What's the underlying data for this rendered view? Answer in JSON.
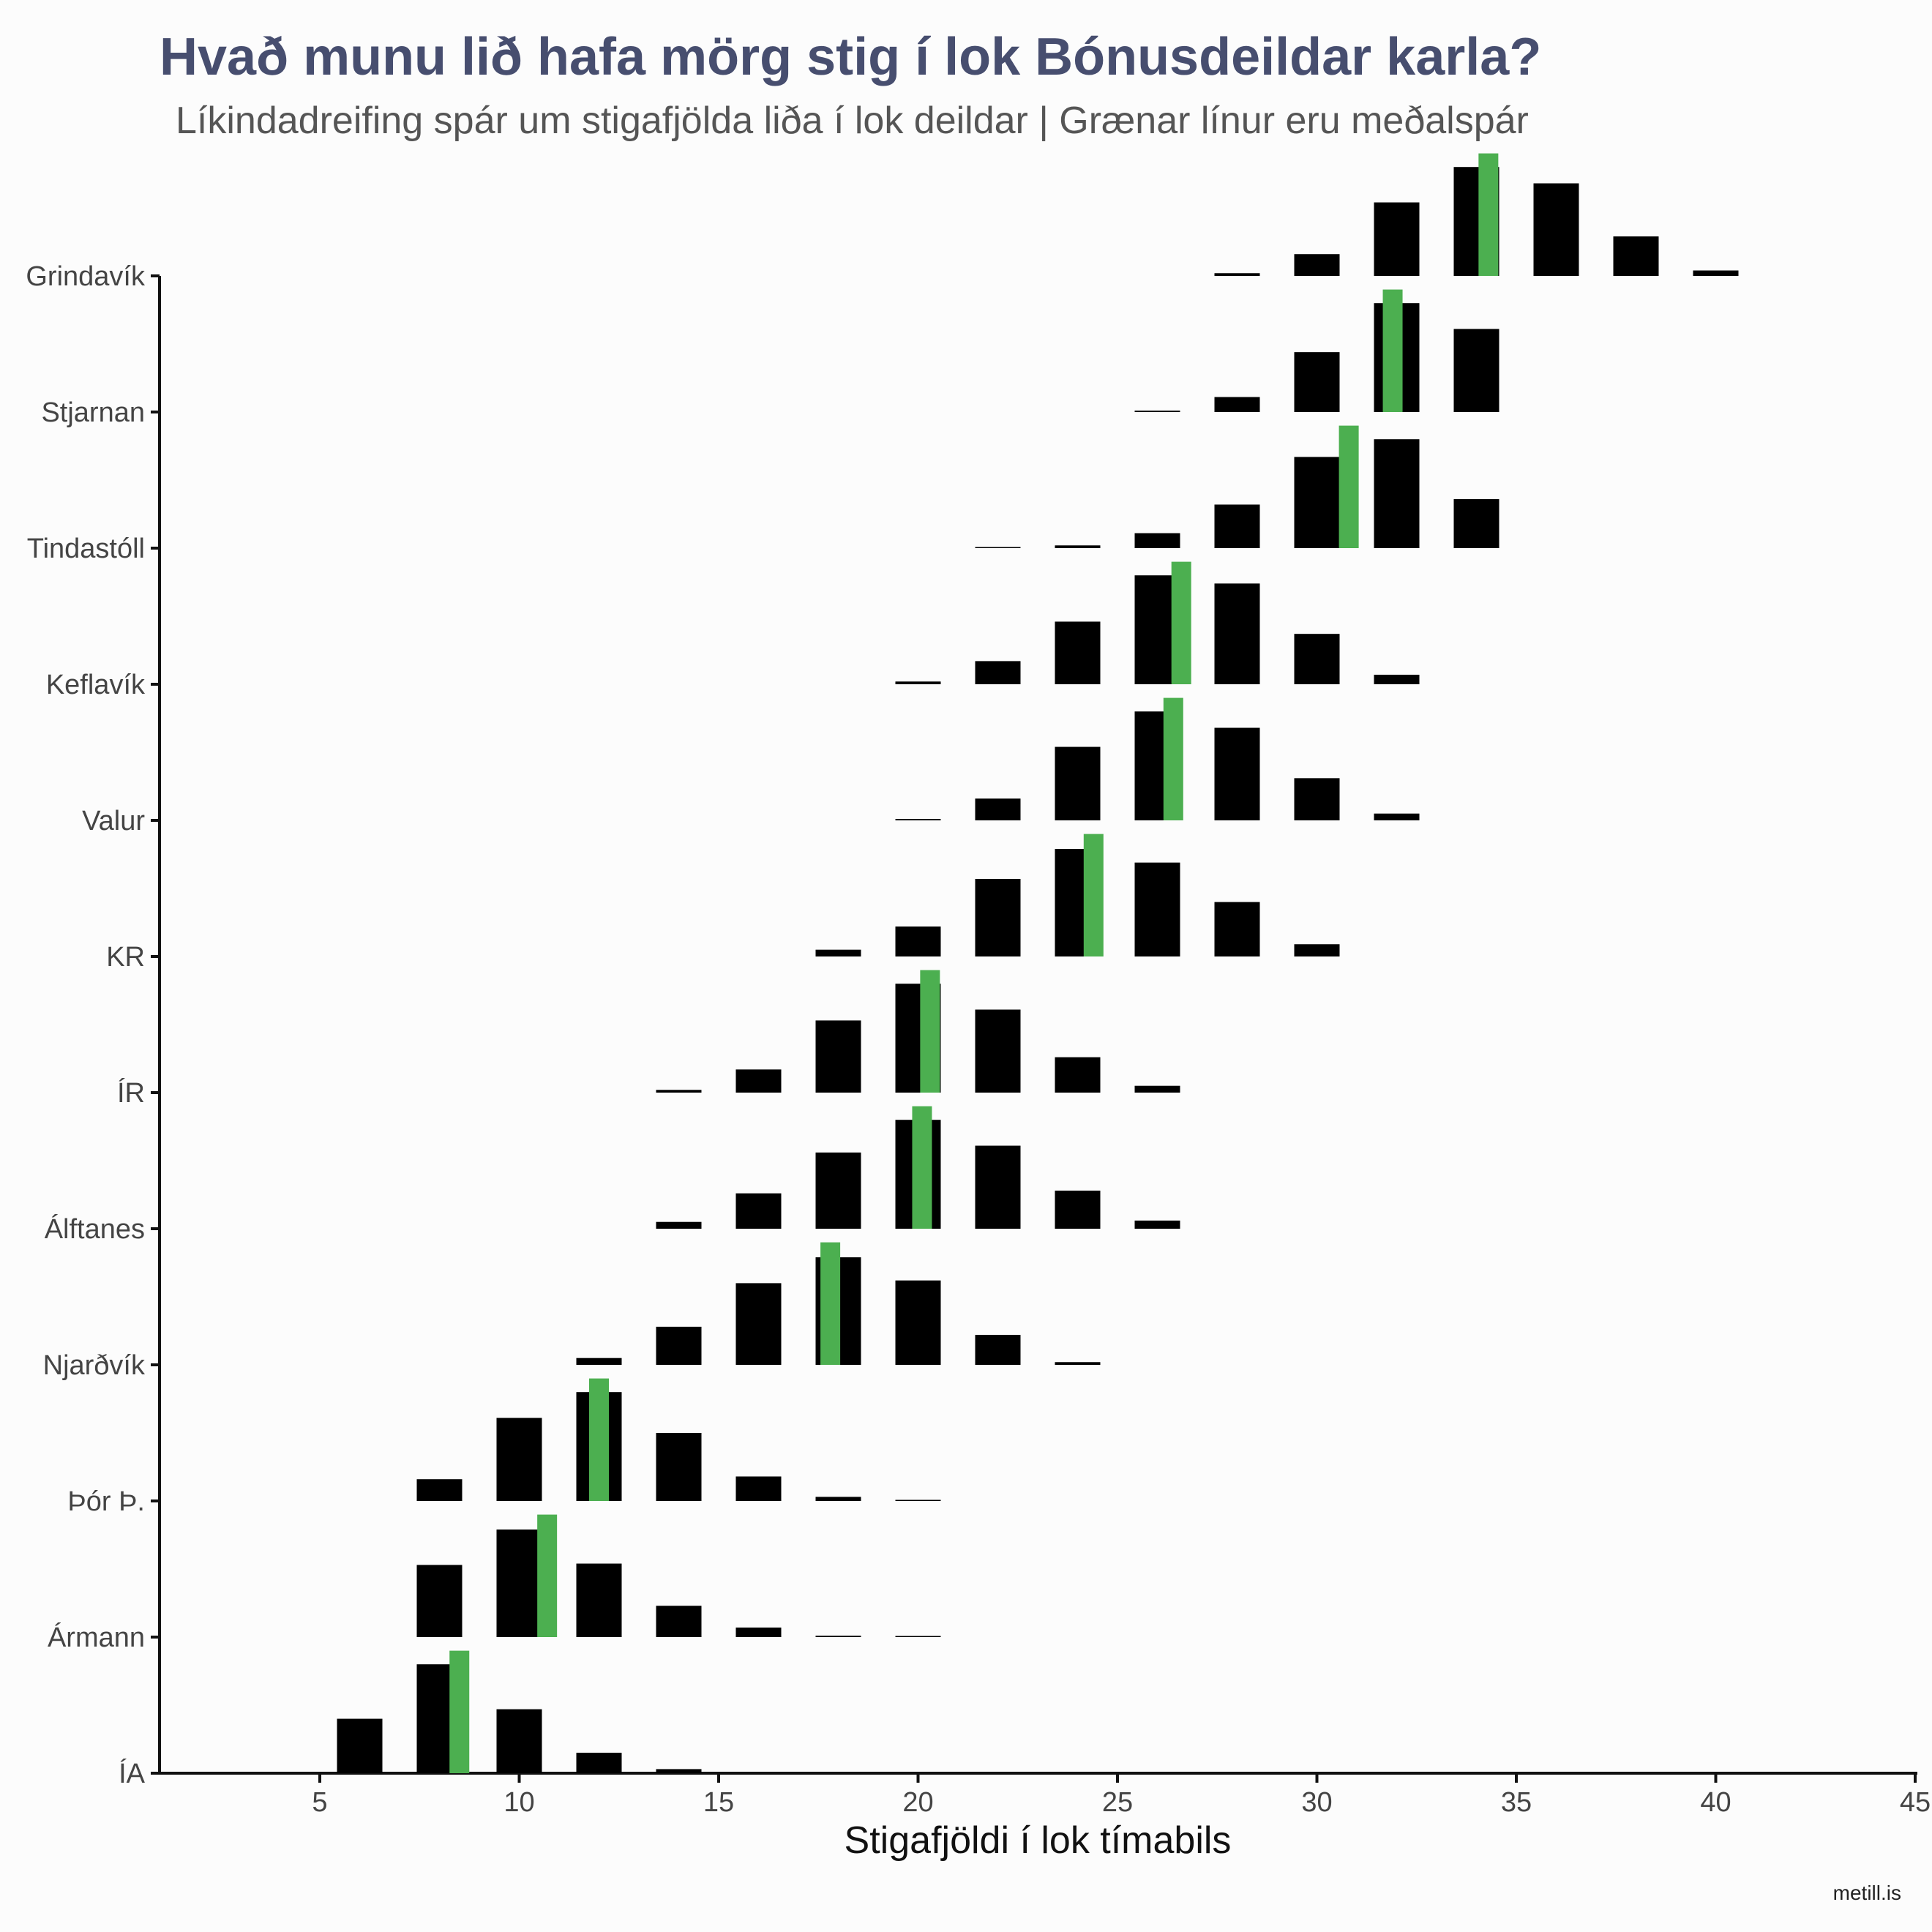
{
  "title": "Hvað munu lið hafa mörg stig í lok Bónusdeildar karla?",
  "subtitle": "Líkindadreifing spár um stigafjölda liða í lok deildar | Grænar línur eru meðalspár",
  "caption": "metill.is",
  "colors": {
    "bars": "#000000",
    "mean_line": "#4caf50",
    "title": "#474e6f",
    "background": "#fcfcfc"
  },
  "chart_data": {
    "type": "bar",
    "title": "Hvað munu lið hafa mörg stig í lok Bónusdeildar karla?",
    "subtitle": "Líkindadreifing spár um stigafjölda liða í lok deildar | Grænar línur eru meðalspár",
    "xlabel": "Stigafjöldi í lok tímabils",
    "ylabel": "",
    "xlim": [
      5,
      45
    ],
    "xticks": [
      5,
      10,
      15,
      20,
      25,
      30,
      35,
      40,
      45
    ],
    "grid": false,
    "points_values": [
      6,
      8,
      10,
      12,
      14,
      16,
      18,
      20,
      22,
      24,
      26,
      28,
      30,
      32,
      34,
      36,
      38,
      40
    ],
    "value_unit": "relative probability (share of tallest bar)",
    "series": [
      {
        "team": "ÍA",
        "mean": 8.5,
        "bars": [
          {
            "x": 6,
            "v": 0.4
          },
          {
            "x": 8,
            "v": 0.8
          },
          {
            "x": 10,
            "v": 0.47
          },
          {
            "x": 12,
            "v": 0.15
          },
          {
            "x": 14,
            "v": 0.03
          }
        ]
      },
      {
        "team": "Ármann",
        "mean": 10.7,
        "bars": [
          {
            "x": 8,
            "v": 0.53
          },
          {
            "x": 10,
            "v": 0.79
          },
          {
            "x": 12,
            "v": 0.54
          },
          {
            "x": 14,
            "v": 0.23
          },
          {
            "x": 16,
            "v": 0.07
          },
          {
            "x": 18,
            "v": 0.01
          },
          {
            "x": 20,
            "v": 0.005
          }
        ]
      },
      {
        "team": "Þór Þ.",
        "mean": 12.0,
        "bars": [
          {
            "x": 8,
            "v": 0.16
          },
          {
            "x": 10,
            "v": 0.61
          },
          {
            "x": 12,
            "v": 0.8
          },
          {
            "x": 14,
            "v": 0.5
          },
          {
            "x": 16,
            "v": 0.18
          },
          {
            "x": 18,
            "v": 0.03
          },
          {
            "x": 20,
            "v": 0.005
          }
        ]
      },
      {
        "team": "Njarðvík",
        "mean": 17.8,
        "bars": [
          {
            "x": 12,
            "v": 0.05
          },
          {
            "x": 14,
            "v": 0.28
          },
          {
            "x": 16,
            "v": 0.6
          },
          {
            "x": 18,
            "v": 0.79
          },
          {
            "x": 20,
            "v": 0.62
          },
          {
            "x": 22,
            "v": 0.22
          },
          {
            "x": 24,
            "v": 0.02
          }
        ]
      },
      {
        "team": "Álftanes",
        "mean": 20.1,
        "bars": [
          {
            "x": 14,
            "v": 0.05
          },
          {
            "x": 16,
            "v": 0.26
          },
          {
            "x": 18,
            "v": 0.56
          },
          {
            "x": 20,
            "v": 0.8
          },
          {
            "x": 22,
            "v": 0.61
          },
          {
            "x": 24,
            "v": 0.28
          },
          {
            "x": 26,
            "v": 0.06
          }
        ]
      },
      {
        "team": "ÍR",
        "mean": 20.3,
        "bars": [
          {
            "x": 14,
            "v": 0.02
          },
          {
            "x": 16,
            "v": 0.17
          },
          {
            "x": 18,
            "v": 0.53
          },
          {
            "x": 20,
            "v": 0.8
          },
          {
            "x": 22,
            "v": 0.61
          },
          {
            "x": 24,
            "v": 0.26
          },
          {
            "x": 26,
            "v": 0.05
          }
        ]
      },
      {
        "team": "KR",
        "mean": 24.4,
        "bars": [
          {
            "x": 18,
            "v": 0.05
          },
          {
            "x": 20,
            "v": 0.22
          },
          {
            "x": 22,
            "v": 0.57
          },
          {
            "x": 24,
            "v": 0.79
          },
          {
            "x": 26,
            "v": 0.69
          },
          {
            "x": 28,
            "v": 0.4
          },
          {
            "x": 30,
            "v": 0.09
          }
        ]
      },
      {
        "team": "Valur",
        "mean": 26.4,
        "bars": [
          {
            "x": 20,
            "v": 0.01
          },
          {
            "x": 22,
            "v": 0.16
          },
          {
            "x": 24,
            "v": 0.54
          },
          {
            "x": 26,
            "v": 0.8
          },
          {
            "x": 28,
            "v": 0.68
          },
          {
            "x": 30,
            "v": 0.31
          },
          {
            "x": 32,
            "v": 0.05
          }
        ]
      },
      {
        "team": "Keflavík",
        "mean": 26.6,
        "bars": [
          {
            "x": 20,
            "v": 0.02
          },
          {
            "x": 22,
            "v": 0.17
          },
          {
            "x": 24,
            "v": 0.46
          },
          {
            "x": 26,
            "v": 0.8
          },
          {
            "x": 28,
            "v": 0.74
          },
          {
            "x": 30,
            "v": 0.37
          },
          {
            "x": 32,
            "v": 0.07
          }
        ]
      },
      {
        "team": "Tindastóll",
        "mean": 30.8,
        "bars": [
          {
            "x": 22,
            "v": 0.005
          },
          {
            "x": 24,
            "v": 0.02
          },
          {
            "x": 26,
            "v": 0.11
          },
          {
            "x": 28,
            "v": 0.32
          },
          {
            "x": 30,
            "v": 0.67
          },
          {
            "x": 32,
            "v": 0.8
          },
          {
            "x": 34,
            "v": 0.36
          }
        ]
      },
      {
        "team": "Stjarnan",
        "mean": 31.9,
        "bars": [
          {
            "x": 26,
            "v": 0.01
          },
          {
            "x": 28,
            "v": 0.11
          },
          {
            "x": 30,
            "v": 0.44
          },
          {
            "x": 32,
            "v": 0.8
          },
          {
            "x": 34,
            "v": 0.61
          }
        ]
      },
      {
        "team": "Grindavík",
        "mean": 34.3,
        "bars": [
          {
            "x": 28,
            "v": 0.02
          },
          {
            "x": 30,
            "v": 0.16
          },
          {
            "x": 32,
            "v": 0.54
          },
          {
            "x": 34,
            "v": 0.8
          },
          {
            "x": 36,
            "v": 0.68
          },
          {
            "x": 38,
            "v": 0.29
          },
          {
            "x": 40,
            "v": 0.04
          }
        ]
      }
    ]
  }
}
